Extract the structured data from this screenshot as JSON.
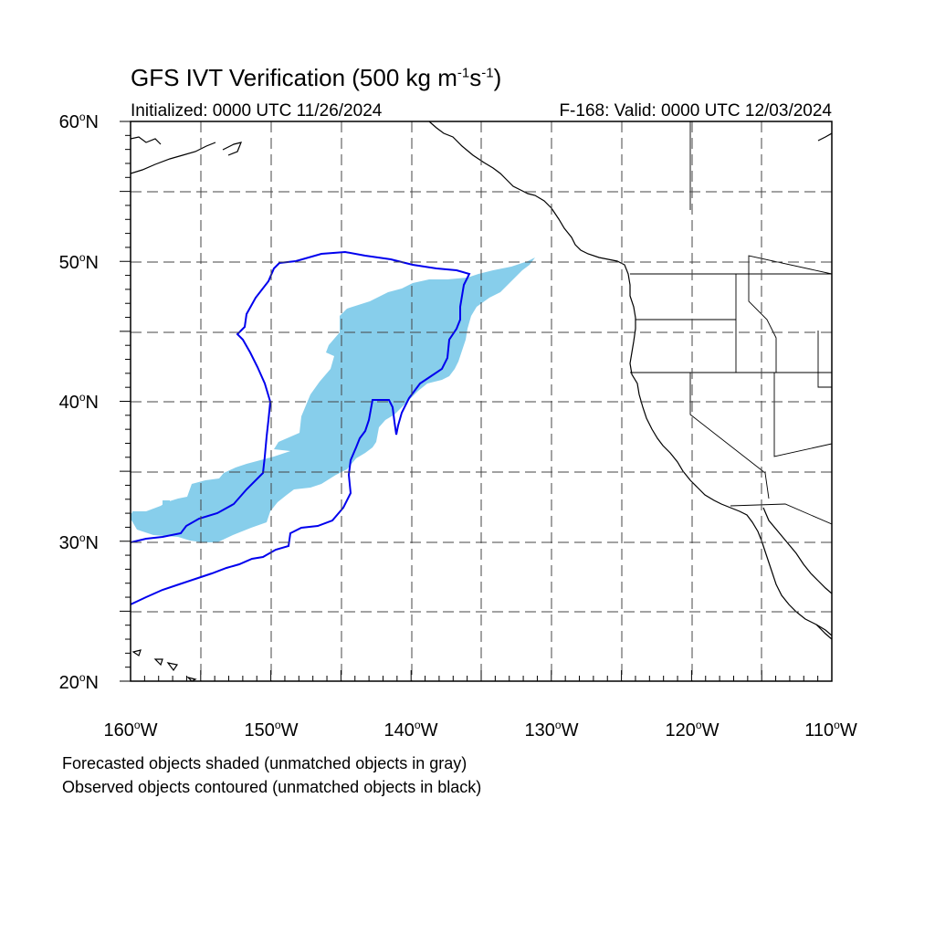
{
  "title": {
    "prefix": "GFS IVT Verification (500 kg m",
    "exp1": "-1",
    "middle": "s",
    "exp2": "-1",
    "suffix": ")"
  },
  "initialized": "Initialized: 0000 UTC 11/26/2024",
  "valid": "F-168: Valid: 0000 UTC 12/03/2024",
  "lat_labels": [
    "60",
    "50",
    "40",
    "30",
    "20"
  ],
  "lat_suffix": "N",
  "lon_labels": [
    "160",
    "150",
    "140",
    "130",
    "120",
    "110"
  ],
  "lon_suffix": "W",
  "degree": "o",
  "notes": [
    "Forecasted objects shaded (unmatched objects in gray)",
    "Observed objects contoured (unmatched objects in black)"
  ],
  "colors": {
    "forecast_fill": "#87ceeb",
    "observed_contour": "#0000ee",
    "coastline": "#000000",
    "gridline": "#444444"
  },
  "map_extent": {
    "lon_min": -160,
    "lon_max": -110,
    "lat_min": 20,
    "lat_max": 60
  }
}
